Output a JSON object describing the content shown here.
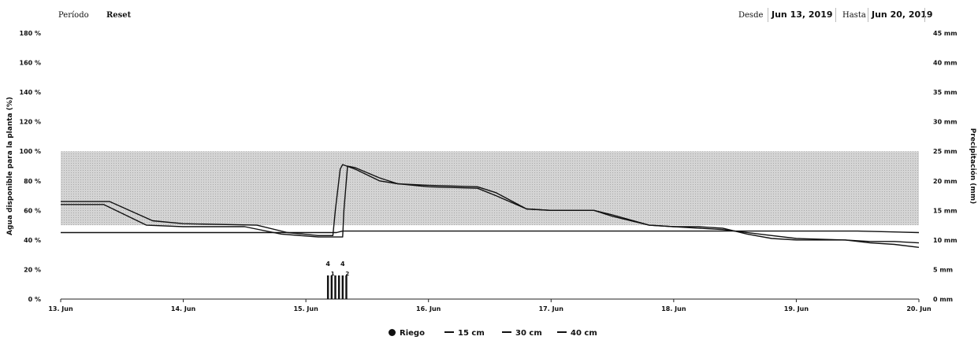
{
  "toolbar": {
    "period_label": "Período",
    "reset_label": "Reset",
    "from_label": "Desde",
    "from_value": "Jun 13, 2019",
    "to_label": "Hasta",
    "to_value": "Jun 20, 2019"
  },
  "chart_data": {
    "type": "line",
    "ylabel": "Agua disponible para la planta (%)",
    "ylabel_right": "Precipitación (mm)",
    "ylim": [
      0,
      180
    ],
    "y_ticks": [
      "0 %",
      "20 %",
      "40 %",
      "60 %",
      "80 %",
      "100 %",
      "120 %",
      "140 %",
      "160 %",
      "180 %"
    ],
    "ylim_right": [
      0,
      45
    ],
    "y_ticks_right": [
      "0 mm",
      "5 mm",
      "10 mm",
      "15 mm",
      "20 mm",
      "25 mm",
      "30 mm",
      "35 mm",
      "40 mm",
      "45 mm"
    ],
    "xlim": [
      13,
      20
    ],
    "x_ticks": [
      "13. Jun",
      "14. Jun",
      "15. Jun",
      "16. Jun",
      "17. Jun",
      "18. Jun",
      "19. Jun",
      "20. Jun"
    ],
    "band": [
      50,
      100
    ],
    "grid": false,
    "legend_position": "bottom-center",
    "legend": [
      "Riego",
      "15 cm",
      "30 cm",
      "40 cm"
    ],
    "series": [
      {
        "name": "15 cm",
        "x": [
          13.0,
          13.4,
          13.75,
          14.0,
          14.6,
          14.85,
          15.1,
          15.22,
          15.24,
          15.28,
          15.3,
          15.4,
          15.6,
          15.75,
          16.0,
          16.4,
          16.55,
          16.8,
          17.0,
          17.35,
          17.5,
          17.8,
          18.0,
          18.2,
          18.4,
          18.7,
          19.0,
          19.4,
          19.6,
          19.8,
          20.0
        ],
        "y": [
          66,
          66,
          53,
          51,
          50,
          45,
          43,
          43,
          60,
          88,
          91,
          88,
          80,
          78,
          77,
          76,
          72,
          61,
          60,
          60,
          56,
          50,
          49,
          48,
          47,
          44,
          41,
          40,
          39,
          39,
          38
        ]
      },
      {
        "name": "30 cm",
        "x": [
          13.0,
          13.35,
          13.7,
          14.0,
          14.5,
          14.8,
          15.1,
          15.25,
          15.3,
          15.31,
          15.34,
          15.4,
          15.6,
          15.75,
          16.0,
          16.4,
          16.55,
          16.8,
          17.0,
          17.35,
          17.5,
          17.8,
          18.0,
          18.2,
          18.4,
          18.6,
          18.8,
          19.0,
          19.4,
          19.6,
          19.8,
          20.0
        ],
        "y": [
          64,
          64,
          50,
          49,
          49,
          44,
          42,
          42,
          42,
          60,
          90,
          89,
          82,
          78,
          76,
          75,
          70,
          61,
          60,
          60,
          57,
          50,
          49,
          49,
          48,
          44,
          41,
          40,
          40,
          38,
          37,
          35
        ]
      },
      {
        "name": "40 cm",
        "x": [
          13.0,
          14.0,
          15.0,
          15.25,
          15.3,
          15.4,
          15.6,
          16.0,
          16.5,
          17.0,
          17.5,
          18.0,
          18.5,
          19.0,
          19.5,
          20.0
        ],
        "y": [
          45,
          45,
          45,
          45,
          46,
          46,
          46,
          46,
          46,
          46,
          46,
          46,
          46,
          46,
          46,
          45
        ]
      }
    ],
    "irrigation": {
      "name": "Riego",
      "x": [
        15.18,
        15.21,
        15.24,
        15.27,
        15.3,
        15.33
      ],
      "y_mm": [
        4,
        4,
        4,
        4,
        4,
        4
      ],
      "labels": [
        {
          "x": 15.18,
          "text": "4"
        },
        {
          "x": 15.3,
          "text": "4"
        }
      ],
      "sub_labels": [
        {
          "x": 15.19,
          "text": "1"
        },
        {
          "x": 15.31,
          "text": "2"
        }
      ]
    }
  }
}
